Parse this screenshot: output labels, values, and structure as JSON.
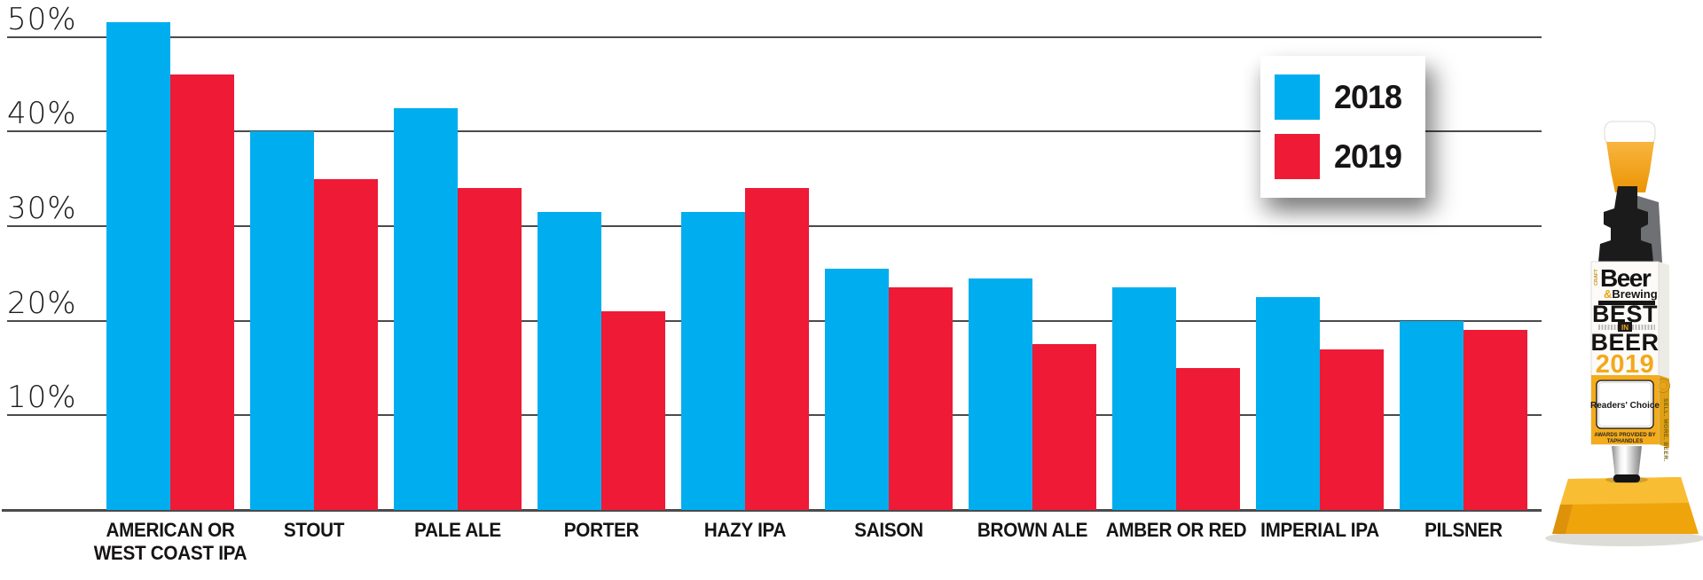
{
  "chart_data": {
    "type": "bar",
    "title": "",
    "xlabel": "",
    "ylabel": "",
    "categories": [
      "AMERICAN OR\nWEST COAST IPA",
      "STOUT",
      "PALE ALE",
      "PORTER",
      "HAZY IPA",
      "SAISON",
      "BROWN ALE",
      "AMBER OR RED",
      "IMPERIAL IPA",
      "PILSNER"
    ],
    "series": [
      {
        "name": "2018",
        "color": "#00AEEF",
        "values": [
          51.5,
          40,
          42.5,
          31.5,
          31.5,
          25.5,
          24.5,
          23.5,
          22.5,
          20
        ]
      },
      {
        "name": "2019",
        "color": "#EE1A36",
        "values": [
          46,
          35,
          34,
          21,
          34,
          23.5,
          17.5,
          15,
          17,
          19
        ]
      }
    ],
    "y_ticks": [
      {
        "value": 50,
        "label": "50%"
      },
      {
        "value": 40,
        "label": "40%"
      },
      {
        "value": 30,
        "label": "30%"
      },
      {
        "value": 20,
        "label": "20%"
      },
      {
        "value": 10,
        "label": "10%"
      }
    ],
    "ylim": [
      0,
      52
    ],
    "grid": true,
    "legend_position": "top-right"
  },
  "legend": {
    "items": [
      {
        "label": "2018",
        "color": "#00AEEF"
      },
      {
        "label": "2019",
        "color": "#EE1A36"
      }
    ]
  },
  "trophy": {
    "brand_vertical": "CRAFT",
    "brand_line1": "Beer",
    "brand_amp": "&",
    "brand_line2": "Brewing",
    "award_line1": "BEST",
    "award_mid": "IN",
    "award_line2": "BEER",
    "award_year": "2019",
    "panel_text": "Readers' Choice",
    "provider_line1": "AWARDS PROVIDED BY",
    "provider_line2": "TAPHANDLES",
    "side_text": "SELL. MORE. BEER.",
    "gold_color": "#F3A81B"
  }
}
